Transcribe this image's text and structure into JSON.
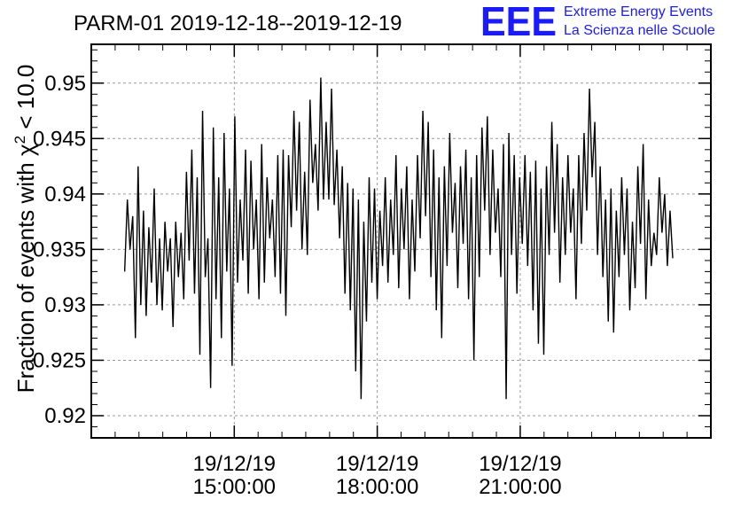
{
  "chart_data": {
    "type": "line",
    "title": "PARM-01 2019-12-18--2019-12-19",
    "ylabel_prefix": "Fraction of events with ",
    "ylabel_symbol": "χ",
    "ylabel_exponent": "2",
    "ylabel_suffix": " < 10.0",
    "ylim": [
      0.918,
      0.9535
    ],
    "yticks": [
      0.92,
      0.925,
      0.93,
      0.935,
      0.94,
      0.945,
      0.95
    ],
    "ytick_labels": [
      "0.92",
      "0.925",
      "0.93",
      "0.935",
      "0.94",
      "0.945",
      "0.95"
    ],
    "xlim_hours": [
      12.0,
      25.0
    ],
    "x_unit": "hours since 2019-12-19 00:00:00",
    "xticks": [
      {
        "hours": 15,
        "date": "19/12/19",
        "time": "15:00:00"
      },
      {
        "hours": 18,
        "date": "19/12/19",
        "time": "18:00:00"
      },
      {
        "hours": 21,
        "date": "19/12/19",
        "time": "21:00:00"
      }
    ],
    "grid": true,
    "series": [
      {
        "color": "#000000",
        "x_start_hours": 12.7,
        "x_end_hours": 24.2,
        "values": [
          0.933,
          0.9395,
          0.935,
          0.938,
          0.927,
          0.9425,
          0.93,
          0.9385,
          0.929,
          0.937,
          0.932,
          0.9405,
          0.93,
          0.936,
          0.9295,
          0.9375,
          0.933,
          0.936,
          0.928,
          0.9375,
          0.9325,
          0.9365,
          0.9305,
          0.942,
          0.934,
          0.944,
          0.931,
          0.9415,
          0.9255,
          0.9475,
          0.9325,
          0.936,
          0.9225,
          0.946,
          0.9305,
          0.9415,
          0.927,
          0.9455,
          0.933,
          0.9405,
          0.9245,
          0.947,
          0.932,
          0.9395,
          0.934,
          0.944,
          0.931,
          0.943,
          0.935,
          0.9395,
          0.9305,
          0.9445,
          0.932,
          0.9415,
          0.936,
          0.9395,
          0.9325,
          0.9435,
          0.931,
          0.944,
          0.929,
          0.9435,
          0.937,
          0.9475,
          0.9385,
          0.9465,
          0.935,
          0.942,
          0.9345,
          0.9485,
          0.941,
          0.9445,
          0.9385,
          0.9505,
          0.9395,
          0.9465,
          0.9395,
          0.9495,
          0.939,
          0.944,
          0.936,
          0.9425,
          0.931,
          0.941,
          0.9295,
          0.9405,
          0.924,
          0.9395,
          0.9215,
          0.9375,
          0.9285,
          0.9415,
          0.932,
          0.9405,
          0.9305,
          0.9385,
          0.9335,
          0.9415,
          0.932,
          0.9395,
          0.9345,
          0.9435,
          0.9315,
          0.9405,
          0.935,
          0.9425,
          0.9305,
          0.9395,
          0.933,
          0.9435,
          0.936,
          0.9475,
          0.938,
          0.9465,
          0.9325,
          0.944,
          0.9295,
          0.9415,
          0.927,
          0.9425,
          0.9335,
          0.9455,
          0.9365,
          0.941,
          0.9315,
          0.9425,
          0.9355,
          0.944,
          0.9305,
          0.9415,
          0.925,
          0.9435,
          0.9325,
          0.946,
          0.9385,
          0.947,
          0.9345,
          0.944,
          0.9365,
          0.9405,
          0.9325,
          0.9445,
          0.9215,
          0.9455,
          0.9345,
          0.9435,
          0.931,
          0.9415,
          0.9355,
          0.9435,
          0.9335,
          0.942,
          0.9295,
          0.943,
          0.9265,
          0.9405,
          0.9255,
          0.9425,
          0.9345,
          0.9465,
          0.9365,
          0.9445,
          0.932,
          0.9415,
          0.9345,
          0.9435,
          0.9365,
          0.9405,
          0.9305,
          0.9435,
          0.9355,
          0.9455,
          0.9385,
          0.9495,
          0.9415,
          0.9465,
          0.9345,
          0.9425,
          0.9325,
          0.9395,
          0.9285,
          0.9405,
          0.9275,
          0.9385,
          0.9325,
          0.9415,
          0.9345,
          0.9405,
          0.9295,
          0.9375,
          0.9315,
          0.9425,
          0.9355,
          0.9445,
          0.9305,
          0.9395,
          0.9335,
          0.9365,
          0.9345,
          0.9415,
          0.9365,
          0.94,
          0.9335,
          0.9385,
          0.9342
        ]
      }
    ]
  },
  "logo": {
    "mark": "EEE",
    "line1": "Extreme Energy Events",
    "line2": "La Scienza nelle Scuole"
  }
}
